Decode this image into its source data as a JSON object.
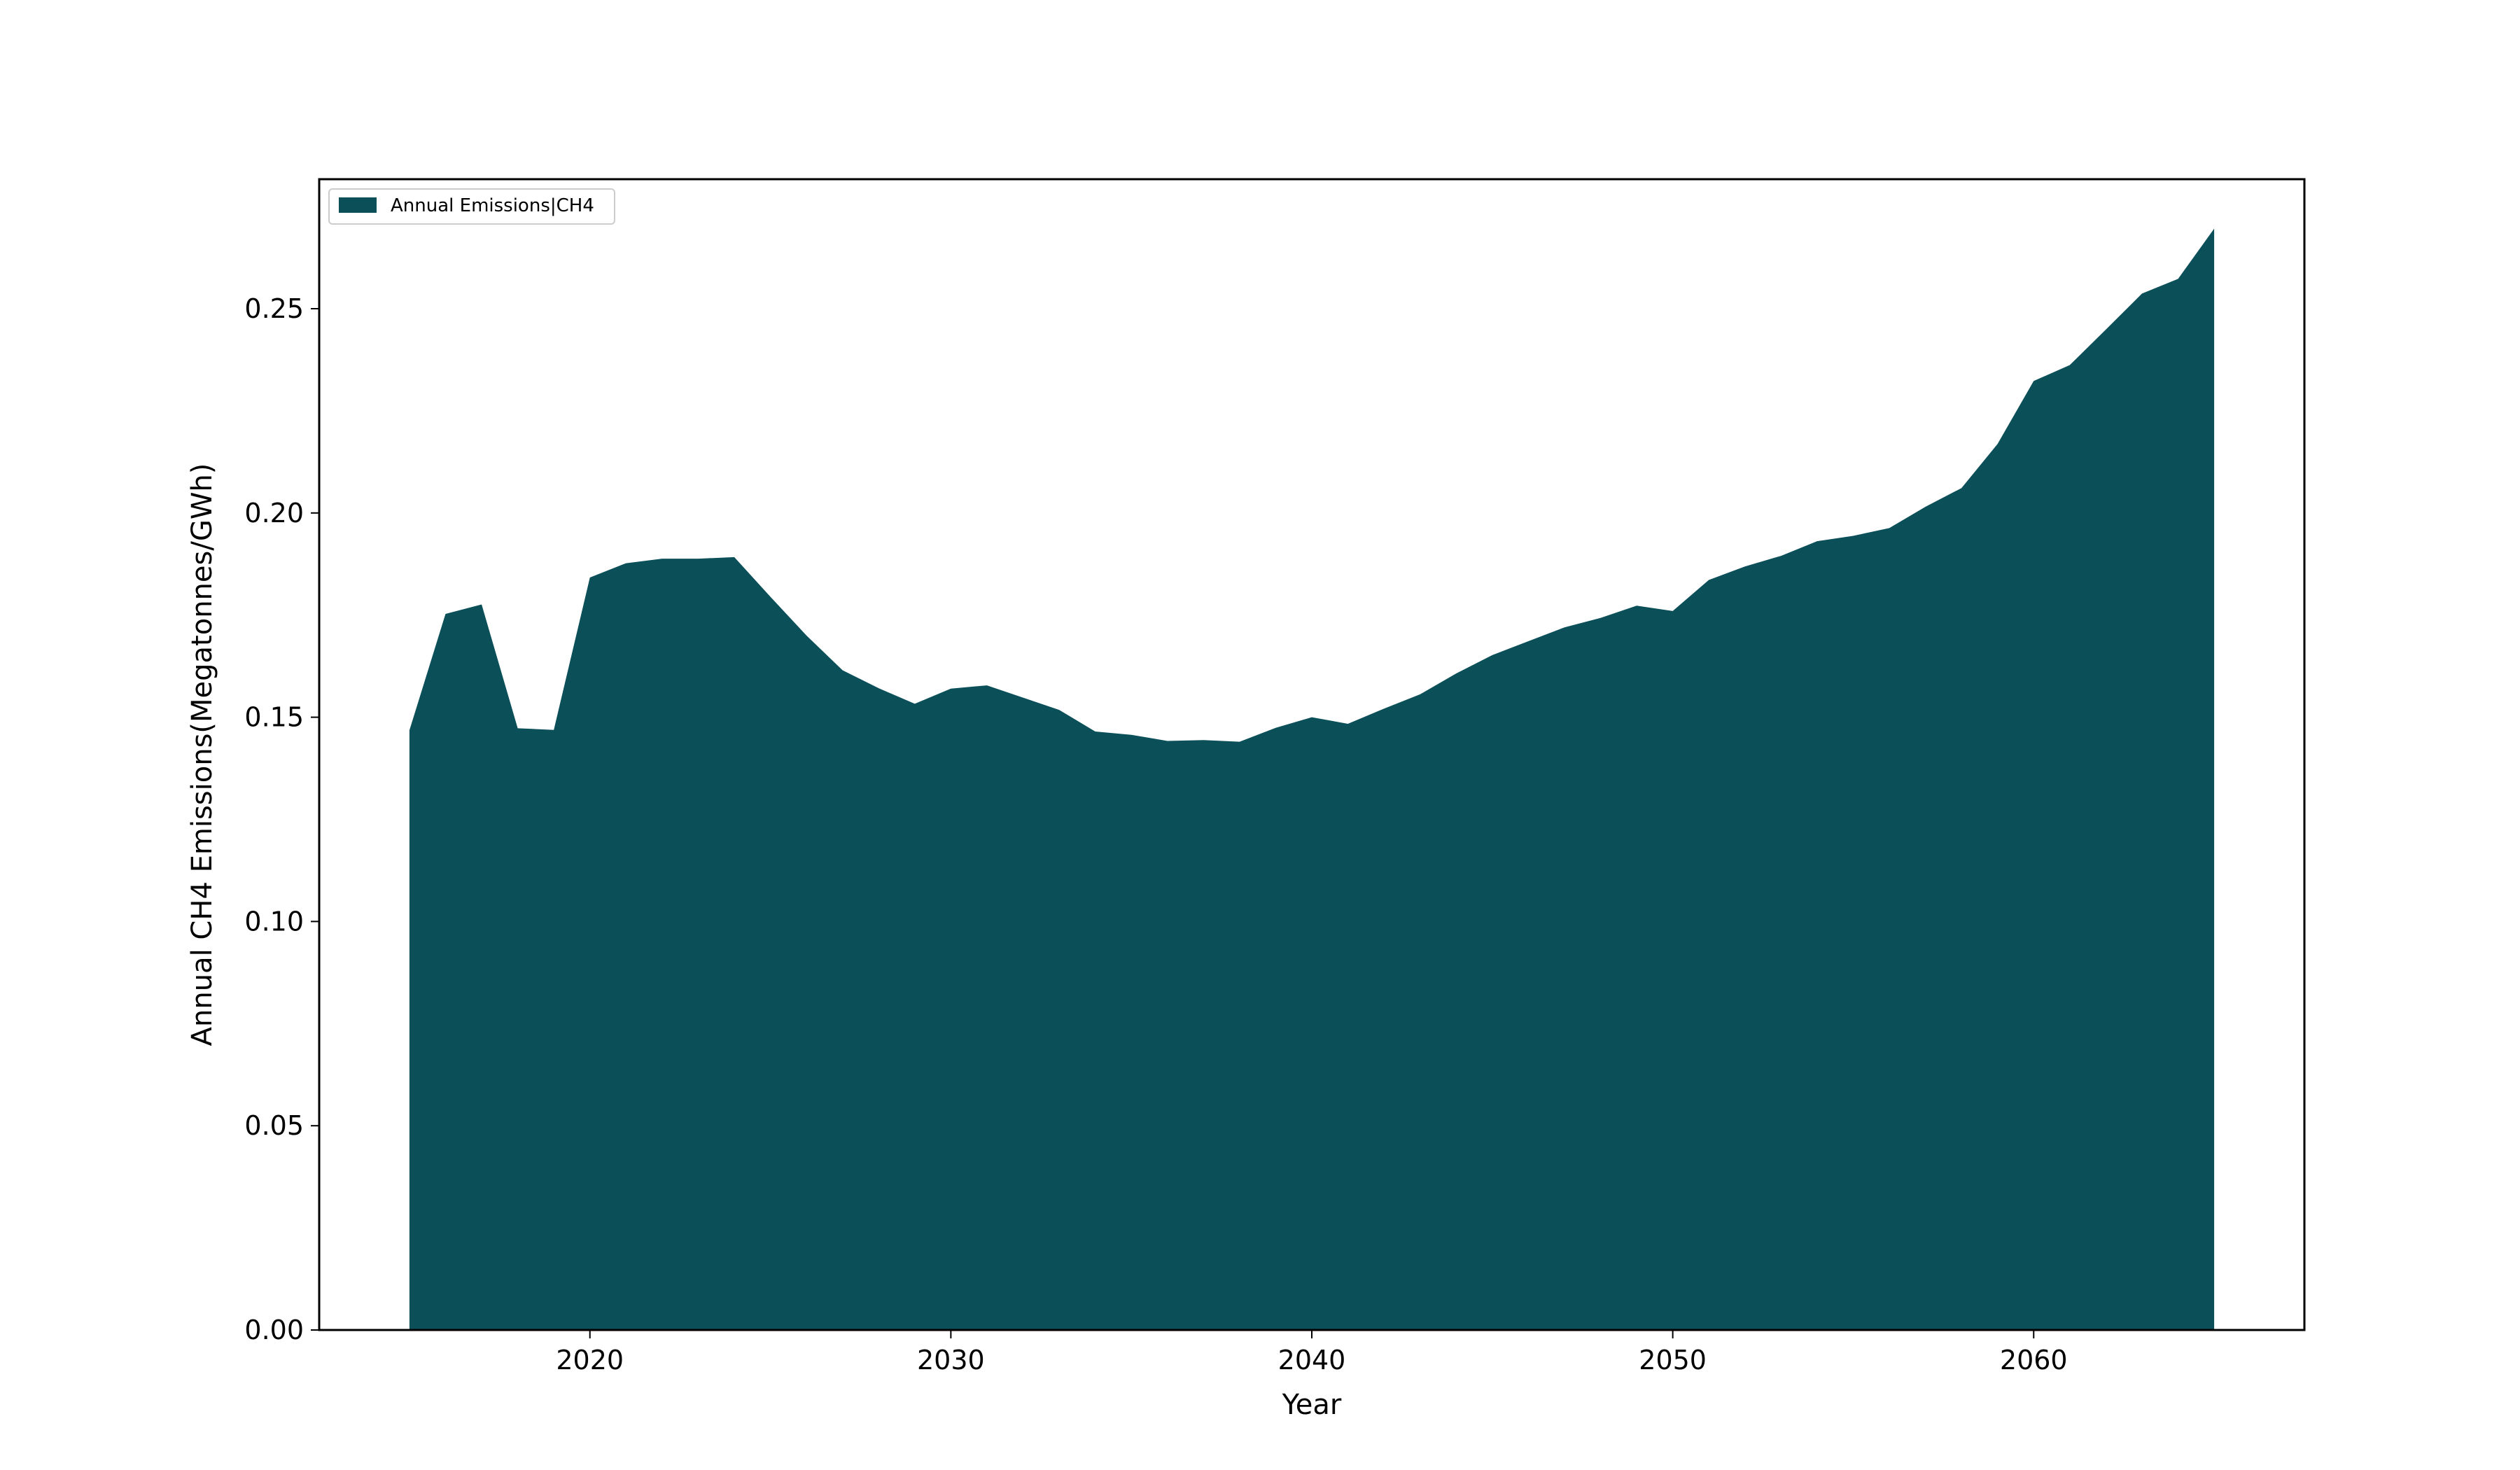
{
  "chart_data": {
    "type": "area",
    "xlabel": "Year",
    "ylabel": "Annual CH4 Emissions(Megatonnes/GWh)",
    "xlim": [
      2012.5,
      2067.5
    ],
    "ylim": [
      0,
      0.2817
    ],
    "xticks": [
      2020,
      2030,
      2040,
      2050,
      2060
    ],
    "xtick_labels": [
      "2020",
      "2030",
      "2040",
      "2050",
      "2060"
    ],
    "yticks": [
      0.0,
      0.05,
      0.1,
      0.15,
      0.2,
      0.25
    ],
    "ytick_labels": [
      "0.00",
      "0.05",
      "0.10",
      "0.15",
      "0.20",
      "0.25"
    ],
    "grid": false,
    "legend_position": "top-left",
    "series": [
      {
        "name": "Annual Emissions|CH4",
        "color": "#0b4f59",
        "x": [
          2015,
          2016,
          2017,
          2018,
          2019,
          2020,
          2021,
          2022,
          2023,
          2024,
          2025,
          2026,
          2027,
          2028,
          2029,
          2030,
          2031,
          2032,
          2033,
          2034,
          2035,
          2036,
          2037,
          2038,
          2039,
          2040,
          2041,
          2042,
          2043,
          2044,
          2045,
          2046,
          2047,
          2048,
          2049,
          2050,
          2051,
          2052,
          2053,
          2054,
          2055,
          2056,
          2057,
          2058,
          2059,
          2060,
          2061,
          2062,
          2063,
          2064,
          2065
        ],
        "y": [
          0.1468,
          0.1753,
          0.1776,
          0.1473,
          0.1469,
          0.1842,
          0.1877,
          0.1888,
          0.1888,
          0.1892,
          0.1795,
          0.17,
          0.1615,
          0.1571,
          0.1533,
          0.157,
          0.1578,
          0.1548,
          0.1518,
          0.1465,
          0.1457,
          0.1442,
          0.1444,
          0.144,
          0.1474,
          0.15,
          0.1484,
          0.1521,
          0.1556,
          0.1607,
          0.1652,
          0.1686,
          0.172,
          0.1743,
          0.1773,
          0.176,
          0.1836,
          0.1869,
          0.1895,
          0.1931,
          0.1944,
          0.1963,
          0.2015,
          0.2061,
          0.2169,
          0.2323,
          0.2362,
          0.2449,
          0.2537,
          0.2573,
          0.2696
        ]
      }
    ]
  }
}
